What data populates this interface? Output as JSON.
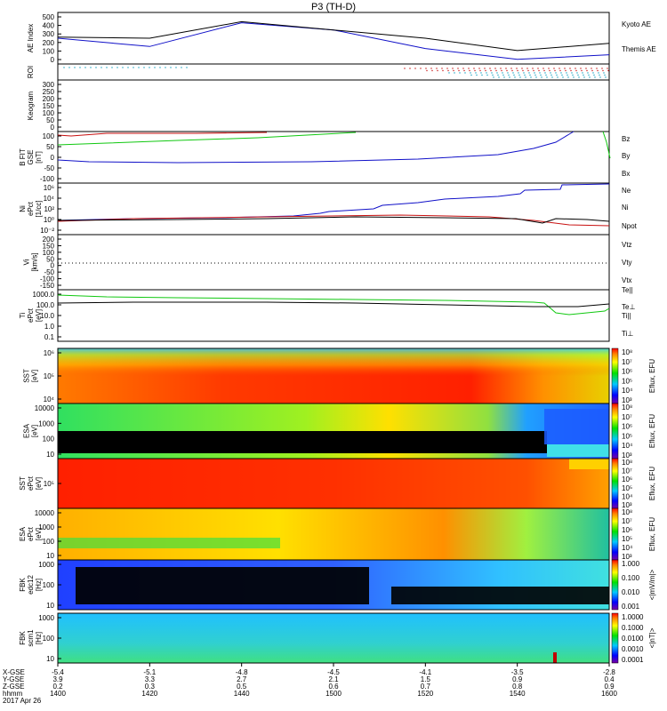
{
  "title": "P3 (TH-D)",
  "colors": {
    "blue": "#1010c8",
    "red": "#c81010",
    "green": "#10c810",
    "black": "#000000"
  },
  "footer": {
    "rows": [
      {
        "label": "X-GSE",
        "values": [
          "-5.4",
          "-5.1",
          "-4.8",
          "-4.5",
          "-4.1",
          "-3.5",
          "-2.8"
        ]
      },
      {
        "label": "Y-GSE",
        "values": [
          "3.9",
          "3.3",
          "2.7",
          "2.1",
          "1.5",
          "0.9",
          "0.4"
        ]
      },
      {
        "label": "Z-GSE",
        "values": [
          "0.2",
          "0.3",
          "0.5",
          "0.6",
          "0.7",
          "0.8",
          "0.9"
        ]
      },
      {
        "label": "hhmm",
        "values": [
          "1400",
          "1420",
          "1440",
          "1500",
          "1520",
          "1540",
          "1600"
        ]
      }
    ],
    "date": "2017 Apr 26"
  },
  "chart_data": [
    {
      "type": "line",
      "ylabel": "AE Index",
      "yticks": [
        "500",
        "400",
        "300",
        "200",
        "100",
        "0"
      ],
      "ylim": [
        0,
        500
      ],
      "legend": [
        "Kyoto AE",
        "Themis AE"
      ],
      "x": [
        "1400",
        "1420",
        "1440",
        "1500",
        "1520",
        "1540",
        "1600"
      ],
      "series": [
        {
          "name": "Kyoto AE",
          "values": [
            250,
            170,
            400,
            330,
            150,
            45,
            90
          ]
        },
        {
          "name": "Themis AE",
          "values": [
            260,
            250,
            410,
            330,
            250,
            130,
            200
          ]
        }
      ]
    },
    {
      "type": "scatter",
      "ylabel": "ROI"
    },
    {
      "type": "line",
      "ylabel": "Keogram",
      "yticks": [
        "300",
        "250",
        "200",
        "150",
        "100",
        "50",
        "0"
      ],
      "ylim": [
        0,
        300
      ]
    },
    {
      "type": "line",
      "ylabel": "B FIT\nGSE\n[nT]",
      "yticks": [
        "100",
        "50",
        "0",
        "-50",
        "-100"
      ],
      "ylim": [
        -100,
        100
      ],
      "legend": [
        "Bz",
        "By",
        "Bx"
      ]
    },
    {
      "type": "line",
      "ylabel": "Ni\nePct\n[1/cc]",
      "yticks": [
        "10⁶",
        "10⁴",
        "10²",
        "10⁰",
        "10⁻²"
      ],
      "legend": [
        "Ne",
        "Ni",
        "Npot"
      ]
    },
    {
      "type": "line",
      "ylabel": "Vi\n[km/s]",
      "yticks": [
        "200",
        "150",
        "100",
        "50",
        "0",
        "-50",
        "-100",
        "-150"
      ],
      "ylim": [
        -200,
        200
      ],
      "legend": [
        "Vtz",
        "Vty",
        "Vtx"
      ]
    },
    {
      "type": "line",
      "ylabel": "Ti\nePct\n[eV]",
      "yticks": [
        "1000.0",
        "100.0",
        "10.0",
        "1.0",
        "0.1"
      ],
      "legend": [
        "Te||",
        "Te⊥",
        "Ti||",
        "Ti⊥"
      ]
    },
    {
      "type": "heatmap",
      "ylabel": "SST\n[eV]",
      "yticks": [
        "10⁶",
        "10⁵",
        "10⁴"
      ],
      "colorbar": [
        "10⁸",
        "10⁷",
        "10⁶",
        "10⁵",
        "10⁴",
        "10³"
      ],
      "cblabel": "Eflux, EFU"
    },
    {
      "type": "heatmap",
      "ylabel": "ESA\n[eV]",
      "yticks": [
        "10000",
        "1000",
        "100",
        "10"
      ],
      "colorbar": [
        "10⁸",
        "10⁷",
        "10⁶",
        "10⁵",
        "10⁴",
        "10³"
      ],
      "cblabel": "Eflux, EFU"
    },
    {
      "type": "heatmap",
      "ylabel": "SST\nePct\n[eV]",
      "yticks": [
        "10⁵"
      ],
      "colorbar": [
        "10⁸",
        "10⁷",
        "10⁶",
        "10⁵",
        "10⁴",
        "10³"
      ],
      "cblabel": "Eflux, EFU"
    },
    {
      "type": "heatmap",
      "ylabel": "ESA\nePct\n[eV]",
      "yticks": [
        "10000",
        "1000",
        "100",
        "10"
      ],
      "colorbar": [
        "10⁸",
        "10⁷",
        "10⁶",
        "10⁵",
        "10⁴",
        "10³"
      ],
      "cblabel": "Eflux, EFU"
    },
    {
      "type": "heatmap",
      "ylabel": "FBK\nedc12\n[Hz]",
      "yticks": [
        "1000",
        "100",
        "10"
      ],
      "colorbar": [
        "1.000",
        "0.100",
        "0.010",
        "0.001"
      ],
      "cblabel": "<|mV/m|>"
    },
    {
      "type": "heatmap",
      "ylabel": "FBK\nscm1\n[Hz]",
      "yticks": [
        "1000",
        "100",
        "10"
      ],
      "colorbar": [
        "1.0000",
        "0.1000",
        "0.0100",
        "0.0010",
        "0.0001"
      ],
      "cblabel": "<|nT|>"
    }
  ]
}
